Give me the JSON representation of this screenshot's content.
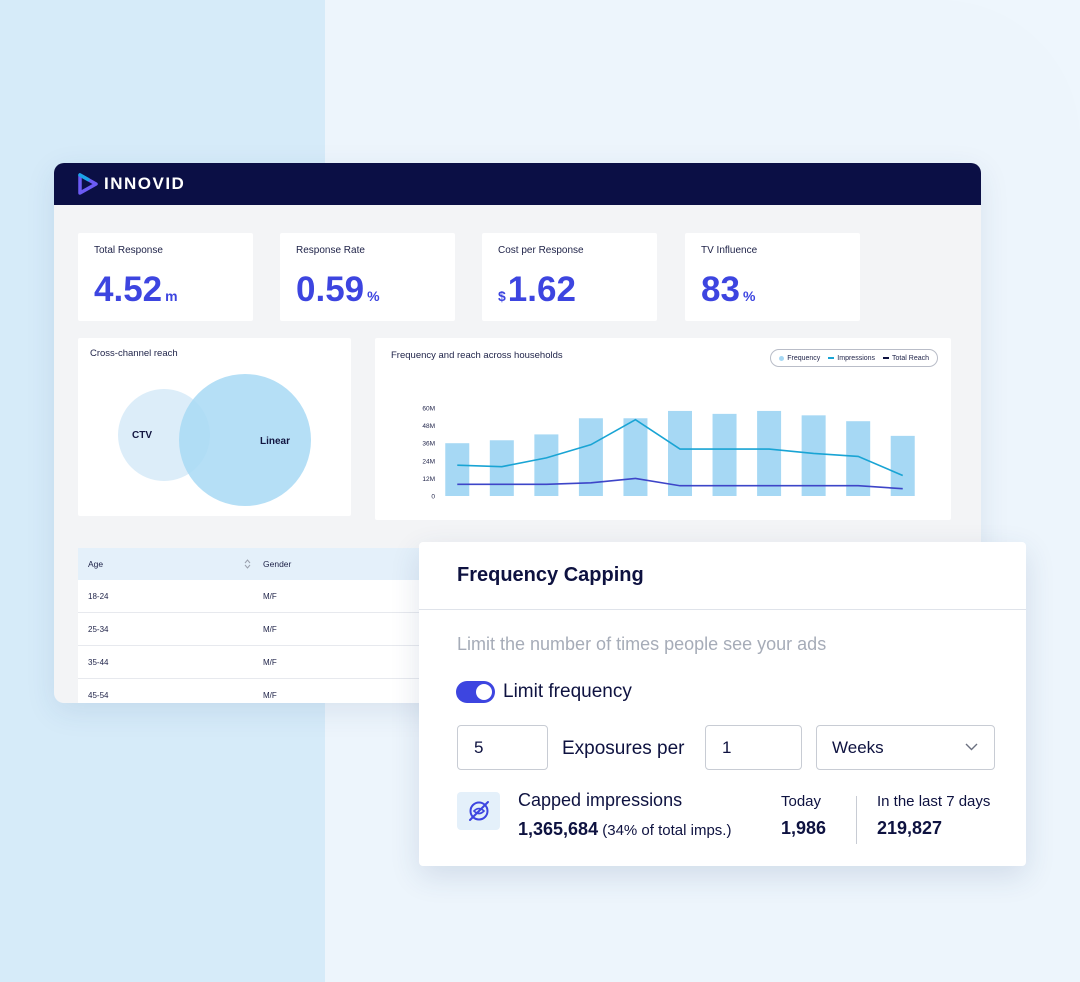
{
  "brand": {
    "name": "INNOVID"
  },
  "kpis": [
    {
      "label": "Total Response",
      "prefix": "",
      "value": "4.52",
      "unit": "m"
    },
    {
      "label": "Response Rate",
      "prefix": "",
      "value": "0.59",
      "unit": "%"
    },
    {
      "label": "Cost per Response",
      "prefix": "$",
      "value": "1.62",
      "unit": ""
    },
    {
      "label": "TV Influence",
      "prefix": "",
      "value": "83",
      "unit": "%"
    }
  ],
  "reach": {
    "title": "Cross-channel reach",
    "ctv": "CTV",
    "linear": "Linear"
  },
  "freq_chart": {
    "title": "Frequency and reach across households",
    "legend": [
      "Frequency",
      "Impressions",
      "Total Reach"
    ]
  },
  "chart_data": {
    "type": "bar",
    "yticks": [
      "60M",
      "48M",
      "36M",
      "24M",
      "12M",
      "0"
    ],
    "ylim": [
      0,
      60
    ],
    "series": [
      {
        "name": "Frequency",
        "values": [
          36,
          38,
          42,
          53,
          53,
          58,
          56,
          58,
          55,
          51,
          41
        ]
      },
      {
        "name": "Impressions",
        "values": [
          21,
          20,
          26,
          35,
          52,
          32,
          32,
          32,
          29,
          27,
          14
        ]
      },
      {
        "name": "Total Reach",
        "values": [
          8,
          8,
          8,
          9,
          12,
          7,
          7,
          7,
          7,
          7,
          5
        ]
      }
    ]
  },
  "table": {
    "headers": [
      "Age",
      "Gender"
    ],
    "rows": [
      [
        "18-24",
        "M/F"
      ],
      [
        "25-34",
        "M/F"
      ],
      [
        "35-44",
        "M/F"
      ],
      [
        "45-54",
        "M/F"
      ]
    ]
  },
  "capping": {
    "title": "Frequency Capping",
    "subtitle": "Limit the number of times people see your ads",
    "toggle_label": "Limit frequency",
    "exposures_value": "5",
    "exposures_label": "Exposures per",
    "period_value": "1",
    "period_unit": "Weeks",
    "capped_title": "Capped impressions",
    "capped_value": "1,365,684",
    "capped_note": " (34% of total imps.)",
    "today_label": "Today",
    "today_value": "1,986",
    "week_label": "In the last 7 days",
    "week_value": "219,827"
  },
  "colors": {
    "accent": "#3d45e0",
    "header": "#0b0f45",
    "bar": "#a6d8f4",
    "impressions": "#19a4d4",
    "reach": "#3d45c8"
  }
}
